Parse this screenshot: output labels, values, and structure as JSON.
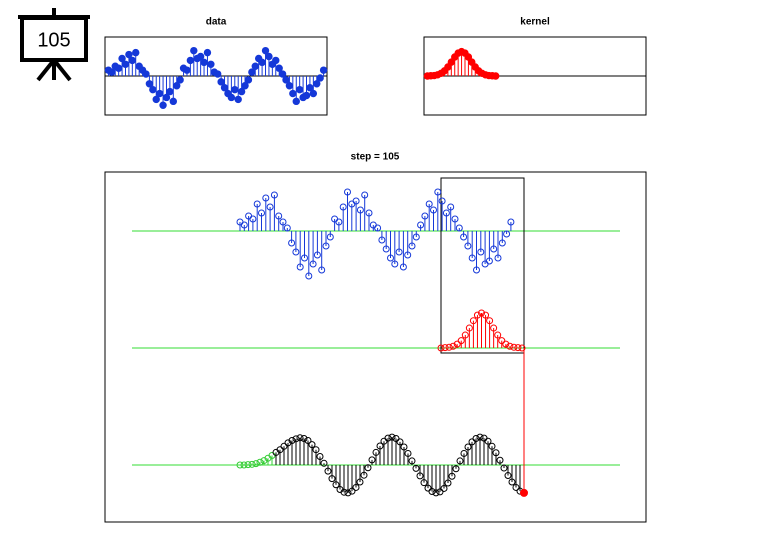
{
  "step_label": "105",
  "chart_data": [
    {
      "type": "stem",
      "title": "data",
      "color": "#1538d8",
      "xlim": [
        0,
        65
      ],
      "ylim": [
        -2,
        2
      ],
      "values": [
        0.3,
        0.2,
        0.5,
        0.4,
        0.9,
        0.6,
        1.1,
        0.8,
        1.2,
        0.5,
        0.3,
        0.1,
        -0.4,
        -0.7,
        -1.2,
        -0.9,
        -1.5,
        -1.1,
        -0.8,
        -1.3,
        -0.5,
        -0.2,
        0.4,
        0.3,
        0.8,
        1.3,
        0.9,
        1.0,
        0.7,
        1.2,
        0.6,
        0.2,
        0.1,
        -0.3,
        -0.6,
        -0.9,
        -1.1,
        -0.7,
        -1.2,
        -0.8,
        -0.5,
        -0.2,
        0.2,
        0.5,
        0.9,
        0.7,
        1.3,
        1.0,
        0.6,
        0.8,
        0.4,
        0.1,
        -0.2,
        -0.5,
        -0.9,
        -1.3,
        -0.7,
        -1.1,
        -1.0,
        -0.6,
        -0.9,
        -0.4,
        -0.1,
        0.3
      ]
    },
    {
      "type": "stem",
      "title": "kernel",
      "color": "#ff0000",
      "xlim": [
        0,
        65
      ],
      "ylim": [
        -1.6,
        1.6
      ],
      "values": [
        0,
        0.01,
        0.02,
        0.05,
        0.11,
        0.21,
        0.37,
        0.57,
        0.78,
        0.94,
        1,
        0.94,
        0.78,
        0.57,
        0.37,
        0.21,
        0.11,
        0.05,
        0.02,
        0.01,
        0
      ]
    },
    {
      "type": "convolution",
      "title": "step = 105",
      "color": "#000000",
      "partial_color": "#33cc33",
      "values": [
        0,
        0,
        0.01,
        0.02,
        0.04,
        0.08,
        0.13,
        0.2,
        0.28,
        0.37,
        0.45,
        0.55,
        0.65,
        0.72,
        0.77,
        0.8,
        0.78,
        0.72,
        0.6,
        0.45,
        0.25,
        0.05,
        -0.18,
        -0.4,
        -0.58,
        -0.72,
        -0.8,
        -0.82,
        -0.77,
        -0.66,
        -0.5,
        -0.3,
        -0.08,
        0.15,
        0.37,
        0.56,
        0.7,
        0.79,
        0.82,
        0.78,
        0.68,
        0.53,
        0.34,
        0.12,
        -0.1,
        -0.32,
        -0.52,
        -0.68,
        -0.78,
        -0.82,
        -0.79,
        -0.69,
        -0.53,
        -0.33,
        -0.11,
        0.12,
        0.34,
        0.53,
        0.68,
        0.78,
        0.82,
        0.79,
        0.7,
        0.55,
        0.36,
        0.14,
        -0.09,
        -0.31,
        -0.5,
        -0.66,
        -0.77,
        -0.82
      ]
    }
  ]
}
